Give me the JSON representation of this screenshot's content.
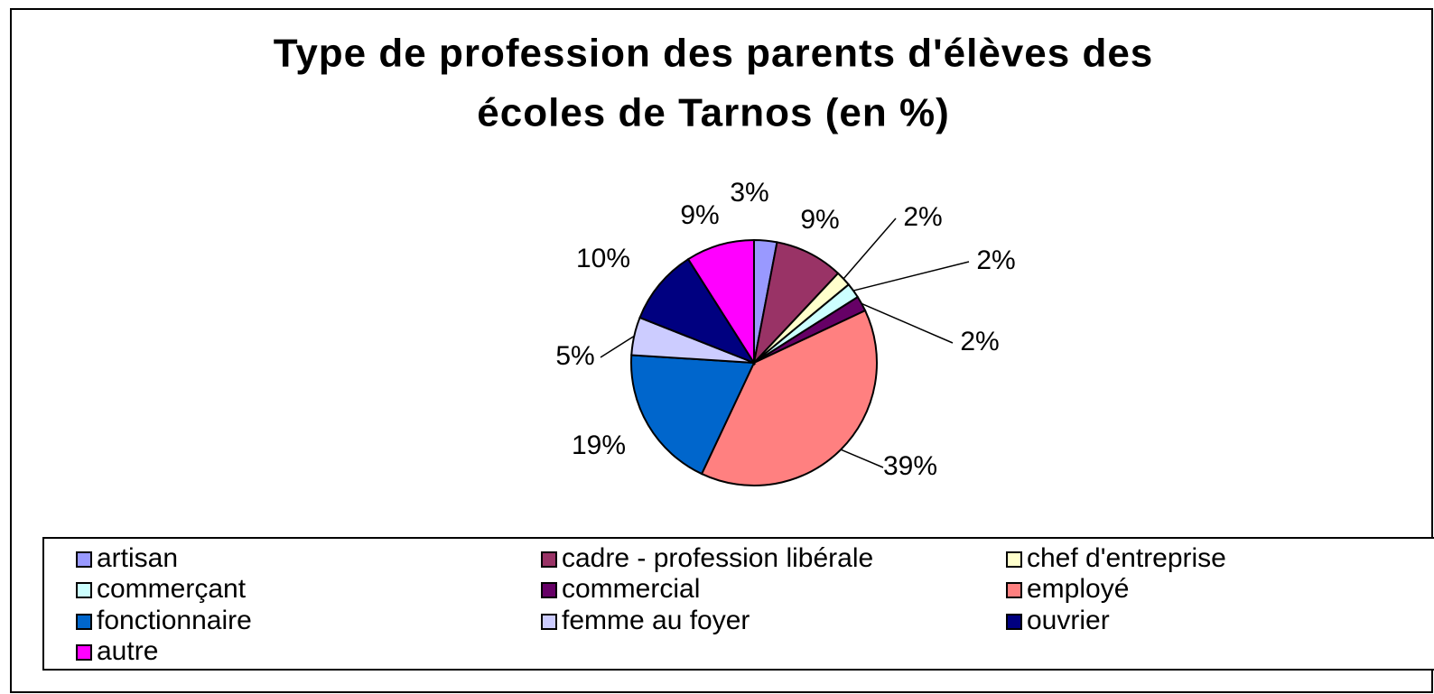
{
  "chart_data": {
    "type": "pie",
    "title": [
      "Type de profession des parents d'élèves des",
      "écoles de Tarnos  (en %)"
    ],
    "categories": [
      "artisan",
      "cadre - profession libérale",
      "chef d'entreprise",
      "commerçant",
      "commercial",
      "employé",
      "fonctionnaire",
      "femme au foyer",
      "ouvrier",
      "autre"
    ],
    "values": [
      3,
      9,
      2,
      2,
      2,
      39,
      19,
      5,
      10,
      9
    ],
    "value_labels": [
      "3%",
      "9%",
      "2%",
      "2%",
      "2%",
      "39%",
      "19%",
      "5%",
      "10%",
      "9%"
    ],
    "colors": [
      "#9999ff",
      "#993366",
      "#ffffcc",
      "#ccffff",
      "#660066",
      "#ff8080",
      "#0066cc",
      "#ccccff",
      "#000080",
      "#ff00ff"
    ],
    "legend": "bottom"
  }
}
